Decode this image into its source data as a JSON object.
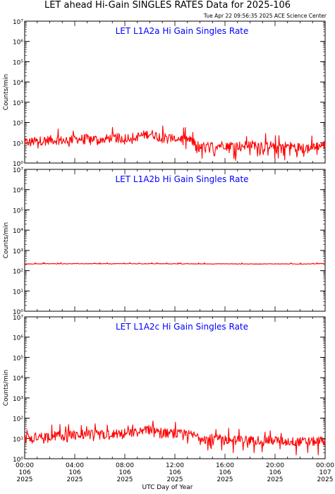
{
  "header": {
    "title": "LET ahead Hi-Gain SINGLES RATES Data for 2025-106",
    "timestamp": "Tue Apr 22 09:56:35 2025 ACE Science Center"
  },
  "colors": {
    "data_line": "#ff0000",
    "panel_title": "#0000ff",
    "axes": "#000000"
  },
  "chart_data": [
    {
      "type": "line",
      "title": "LET L1A2a Hi Gain Singles Rate",
      "ylabel": "Counts/min",
      "yscale": "log",
      "ylim_exp": [
        0,
        7
      ],
      "yticks": [
        "10⁰",
        "10¹",
        "10²",
        "10³",
        "10⁴",
        "10⁵",
        "10⁶",
        "10⁷"
      ],
      "xlim_hours": [
        0,
        24
      ],
      "series": [
        {
          "pattern": "noisy",
          "x": [
            0,
            1,
            2,
            3,
            4,
            5,
            6,
            7,
            8,
            9,
            10,
            11,
            12,
            13,
            14,
            15,
            16,
            17,
            18,
            19,
            20,
            21,
            22,
            23,
            24
          ],
          "y": [
            10,
            12,
            14,
            13,
            15,
            16,
            15,
            17,
            18,
            20,
            28,
            19,
            17,
            15,
            6,
            7,
            8,
            7,
            8,
            8,
            7,
            7,
            6,
            6,
            8
          ],
          "lo": [
            4,
            5,
            6,
            5,
            7,
            7,
            6,
            8,
            8,
            9,
            12,
            8,
            7,
            4,
            1,
            1.5,
            2,
            1,
            1.5,
            2,
            1,
            1.5,
            1,
            1,
            2
          ]
        }
      ]
    },
    {
      "type": "line",
      "title": "LET L1A2b Hi Gain Singles Rate",
      "ylabel": "Counts/min",
      "yscale": "log",
      "ylim_exp": [
        0,
        7
      ],
      "yticks": [
        "10⁰",
        "10¹",
        "10²",
        "10³",
        "10⁴",
        "10⁵",
        "10⁶",
        "10⁷"
      ],
      "xlim_hours": [
        0,
        24
      ],
      "series": [
        {
          "pattern": "flat",
          "x": [
            0,
            1,
            2,
            3,
            4,
            5,
            6,
            7,
            8,
            9,
            10,
            11,
            12,
            13,
            14,
            15,
            16,
            17,
            18,
            19,
            20,
            21,
            22,
            23,
            24
          ],
          "y": [
            215,
            218,
            220,
            219,
            221,
            220,
            218,
            219,
            222,
            220,
            221,
            219,
            218,
            217,
            216,
            217,
            218,
            216,
            215,
            216,
            217,
            216,
            215,
            216,
            230
          ],
          "lo": [
            200,
            200,
            200,
            200,
            200,
            200,
            200,
            200,
            200,
            200,
            200,
            200,
            200,
            200,
            200,
            200,
            200,
            200,
            200,
            200,
            200,
            200,
            200,
            200,
            200
          ]
        }
      ]
    },
    {
      "type": "line",
      "title": "LET L1A2c Hi Gain Singles Rate",
      "ylabel": "Counts/min",
      "yscale": "log",
      "ylim_exp": [
        0,
        7
      ],
      "yticks": [
        "10⁰",
        "10¹",
        "10²",
        "10³",
        "10⁴",
        "10⁵",
        "10⁶",
        "10⁷"
      ],
      "xlim_hours": [
        0,
        24
      ],
      "xlabel": "UTC Day of Year",
      "xticks": [
        {
          "time": "00:00",
          "doy": "106",
          "year": "2025"
        },
        {
          "time": "04:00",
          "doy": "106",
          "year": "2025"
        },
        {
          "time": "08:00",
          "doy": "106",
          "year": "2025"
        },
        {
          "time": "12:00",
          "doy": "106",
          "year": "2025"
        },
        {
          "time": "16:00",
          "doy": "106",
          "year": "2025"
        },
        {
          "time": "20:00",
          "doy": "106",
          "year": "2025"
        },
        {
          "time": "00:00",
          "doy": "107",
          "year": "2025"
        }
      ],
      "series": [
        {
          "pattern": "noisy",
          "x": [
            0,
            1,
            2,
            3,
            4,
            5,
            6,
            7,
            8,
            9,
            10,
            11,
            12,
            13,
            14,
            15,
            16,
            17,
            18,
            19,
            20,
            21,
            22,
            23,
            24
          ],
          "y": [
            10,
            12,
            13,
            14,
            15,
            16,
            15,
            17,
            18,
            20,
            30,
            19,
            17,
            16,
            12,
            10,
            9,
            8,
            9,
            8,
            8,
            7,
            7,
            7,
            8
          ],
          "lo": [
            4,
            5,
            6,
            6,
            7,
            7,
            6,
            8,
            8,
            9,
            12,
            8,
            7,
            5,
            3,
            2,
            2,
            1.5,
            1.5,
            2,
            1.5,
            1,
            1,
            1,
            2
          ]
        }
      ]
    }
  ]
}
